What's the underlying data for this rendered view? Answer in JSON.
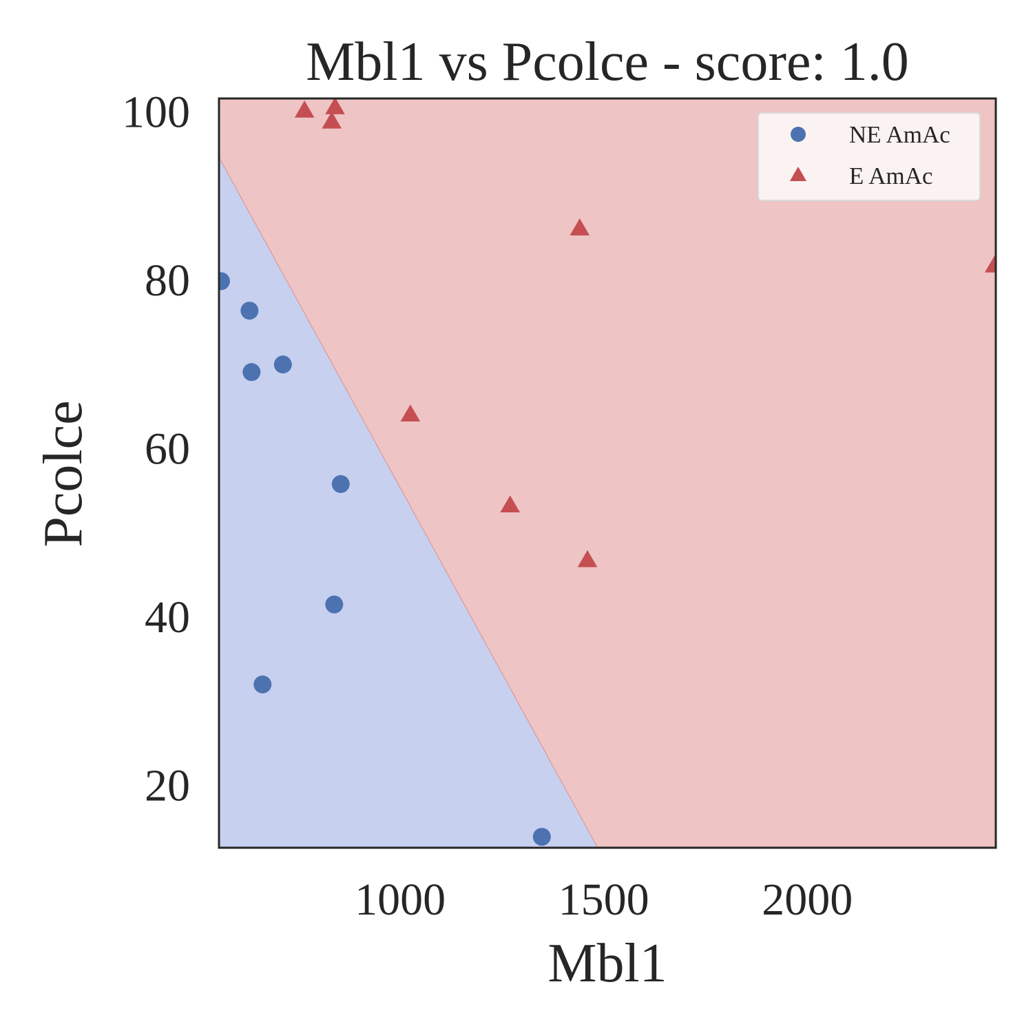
{
  "chart_data": {
    "type": "scatter",
    "title": "Mbl1 vs Pcolce - score: 1.0",
    "xlabel": "Mbl1",
    "ylabel": "Pcolce",
    "xlim": [
      555,
      2463
    ],
    "ylim": [
      12.5,
      101.5
    ],
    "xticks": [
      1000,
      1500,
      2000
    ],
    "yticks": [
      20,
      40,
      60,
      80,
      100
    ],
    "grid": false,
    "legend_position": "top-right",
    "decision_boundary": {
      "points": [
        [
          555,
          94.5
        ],
        [
          1485,
          12.5
        ]
      ],
      "region_colors": {
        "NE AmAc": "#c8d0f0",
        "E AmAc": "#eec4c4"
      }
    },
    "series": [
      {
        "name": "NE AmAc",
        "marker": "circle",
        "color": "#4c72b0",
        "points": [
          [
            560,
            79.8
          ],
          [
            630,
            76.3
          ],
          [
            635,
            69.0
          ],
          [
            712,
            69.9
          ],
          [
            854,
            55.7
          ],
          [
            838,
            41.4
          ],
          [
            662,
            31.9
          ],
          [
            1348,
            13.8
          ]
        ]
      },
      {
        "name": "E AmAc",
        "marker": "triangle",
        "color": "#c44e52",
        "points": [
          [
            765,
            100.0
          ],
          [
            832,
            98.7
          ],
          [
            840,
            100.4
          ],
          [
            1441,
            86.0
          ],
          [
            1025,
            63.9
          ],
          [
            1270,
            53.1
          ],
          [
            1460,
            46.6
          ],
          [
            2460,
            81.6
          ]
        ]
      }
    ]
  }
}
